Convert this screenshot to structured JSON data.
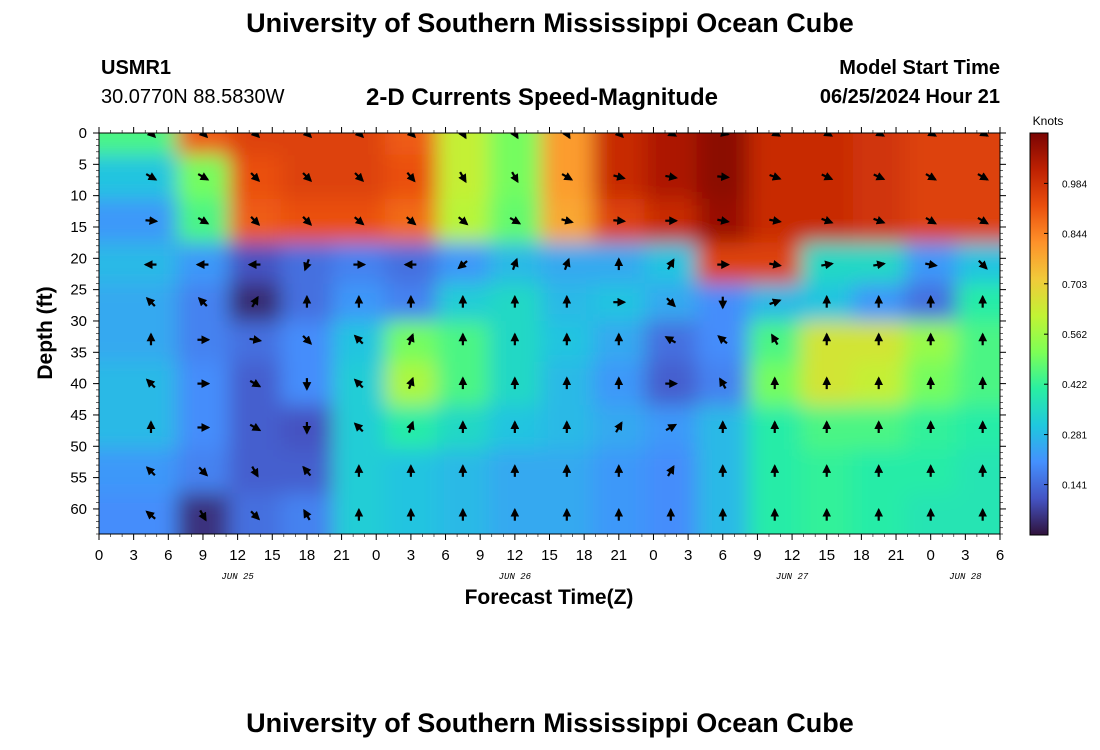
{
  "header": {
    "title": "University of Southern Mississippi Ocean Cube",
    "station_id": "USMR1",
    "coordinates": "30.0770N  88.5830W",
    "plot_title": "2-D Currents Speed-Magnitude",
    "model_start_label": "Model Start Time",
    "model_start_value": "06/25/2024 Hour 21"
  },
  "footer": {
    "title": "University of Southern Mississippi Ocean Cube"
  },
  "chart_data": {
    "type": "heatmap",
    "title": "2-D Currents Speed-Magnitude",
    "xlabel": "Forecast Time(Z)",
    "ylabel": "Depth (ft)",
    "x_units": "hours since 06/25/2024 00Z",
    "xlim": [
      0,
      78
    ],
    "ylim": [
      0,
      64
    ],
    "y_inverted": true,
    "x_tick_labels": [
      "0",
      "3",
      "6",
      "9",
      "12",
      "15",
      "18",
      "21",
      "0",
      "3",
      "6",
      "9",
      "12",
      "15",
      "18",
      "21",
      "0",
      "3",
      "6",
      "9",
      "12",
      "15",
      "18",
      "21",
      "0",
      "3",
      "6"
    ],
    "y_ticks": [
      0,
      5,
      10,
      15,
      20,
      25,
      30,
      35,
      40,
      45,
      50,
      55,
      60
    ],
    "date_labels": [
      {
        "text": "JUN 25",
        "hour": 12
      },
      {
        "text": "JUN 26",
        "hour": 36
      },
      {
        "text": "JUN 27",
        "hour": 60
      },
      {
        "text": "JUN 28",
        "hour": 75
      }
    ],
    "colorbar": {
      "label": "Knots",
      "min": 0,
      "max": 1.125,
      "ticks": [
        "0.984",
        "0.844",
        "0.703",
        "0.562",
        "0.422",
        "0.281",
        "0.141"
      ],
      "colormap": [
        "#30123b",
        "#4454c4",
        "#4490fe",
        "#1fc8de",
        "#29efa2",
        "#7dff56",
        "#c1f334",
        "#f1ca3a",
        "#fe922a",
        "#ea4f0d",
        "#be2102",
        "#7a0403"
      ]
    },
    "vector_columns_hours": [
      4.5,
      9,
      13.5,
      18,
      22.5,
      27,
      31.5,
      36,
      40.5,
      45,
      49.5,
      54,
      58.5,
      63,
      67.5,
      72,
      76.5
    ],
    "vector_rows_ft": [
      0,
      7,
      14,
      21,
      27,
      33,
      40,
      47,
      54,
      61
    ],
    "speed_knots_grid": [
      [
        0.45,
        0.9,
        0.95,
        0.95,
        0.95,
        0.9,
        0.62,
        0.5,
        0.8,
        1.0,
        1.05,
        1.1,
        1.0,
        1.0,
        0.98,
        0.95,
        0.95
      ],
      [
        0.3,
        0.5,
        0.92,
        0.95,
        0.95,
        0.92,
        0.62,
        0.5,
        0.8,
        1.0,
        1.05,
        1.1,
        1.0,
        1.0,
        0.98,
        0.95,
        0.95
      ],
      [
        0.22,
        0.45,
        0.9,
        0.92,
        0.92,
        0.88,
        0.6,
        0.48,
        0.78,
        0.95,
        1.0,
        1.08,
        1.0,
        1.0,
        0.98,
        0.95,
        0.95
      ],
      [
        0.28,
        0.22,
        0.1,
        0.15,
        0.18,
        0.15,
        0.22,
        0.28,
        0.25,
        0.25,
        0.3,
        0.95,
        0.95,
        0.35,
        0.35,
        0.22,
        0.3
      ],
      [
        0.25,
        0.18,
        0.04,
        0.15,
        0.22,
        0.18,
        0.32,
        0.35,
        0.28,
        0.3,
        0.25,
        0.2,
        0.28,
        0.3,
        0.22,
        0.15,
        0.4
      ],
      [
        0.25,
        0.18,
        0.15,
        0.2,
        0.3,
        0.5,
        0.45,
        0.35,
        0.3,
        0.25,
        0.15,
        0.2,
        0.45,
        0.65,
        0.65,
        0.55,
        0.45
      ],
      [
        0.28,
        0.2,
        0.12,
        0.2,
        0.32,
        0.58,
        0.45,
        0.35,
        0.28,
        0.22,
        0.12,
        0.18,
        0.5,
        0.65,
        0.62,
        0.5,
        0.45
      ],
      [
        0.28,
        0.2,
        0.12,
        0.1,
        0.32,
        0.4,
        0.35,
        0.3,
        0.28,
        0.25,
        0.22,
        0.28,
        0.4,
        0.45,
        0.45,
        0.42,
        0.4
      ],
      [
        0.22,
        0.18,
        0.12,
        0.12,
        0.32,
        0.3,
        0.28,
        0.25,
        0.25,
        0.22,
        0.2,
        0.28,
        0.4,
        0.42,
        0.4,
        0.4,
        0.38
      ],
      [
        0.2,
        0.05,
        0.15,
        0.18,
        0.32,
        0.3,
        0.28,
        0.25,
        0.25,
        0.22,
        0.2,
        0.28,
        0.4,
        0.42,
        0.4,
        0.38,
        0.38
      ]
    ],
    "direction_deg_grid": [
      [
        135,
        135,
        135,
        135,
        135,
        135,
        150,
        150,
        150,
        135,
        120,
        105,
        120,
        120,
        120,
        120,
        120
      ],
      [
        120,
        120,
        135,
        135,
        135,
        140,
        150,
        150,
        120,
        105,
        100,
        95,
        110,
        115,
        115,
        120,
        120
      ],
      [
        95,
        120,
        135,
        135,
        130,
        130,
        130,
        120,
        105,
        95,
        90,
        100,
        100,
        110,
        110,
        120,
        120
      ],
      [
        270,
        270,
        270,
        200,
        90,
        270,
        230,
        20,
        20,
        0,
        30,
        90,
        100,
        80,
        80,
        100,
        135
      ],
      [
        315,
        315,
        30,
        0,
        0,
        0,
        0,
        0,
        0,
        90,
        135,
        180,
        70,
        0,
        0,
        0,
        0
      ],
      [
        0,
        90,
        100,
        135,
        315,
        20,
        0,
        0,
        0,
        0,
        300,
        310,
        330,
        0,
        0,
        0,
        0
      ],
      [
        315,
        90,
        120,
        180,
        315,
        20,
        0,
        0,
        0,
        0,
        90,
        330,
        0,
        0,
        0,
        0,
        0
      ],
      [
        0,
        90,
        120,
        180,
        315,
        20,
        0,
        0,
        0,
        30,
        60,
        0,
        0,
        0,
        0,
        0,
        0
      ],
      [
        315,
        135,
        150,
        320,
        0,
        0,
        0,
        0,
        0,
        0,
        30,
        0,
        0,
        0,
        0,
        0,
        0
      ],
      [
        310,
        150,
        135,
        330,
        0,
        0,
        0,
        0,
        0,
        0,
        0,
        0,
        0,
        0,
        0,
        0,
        0
      ]
    ]
  }
}
